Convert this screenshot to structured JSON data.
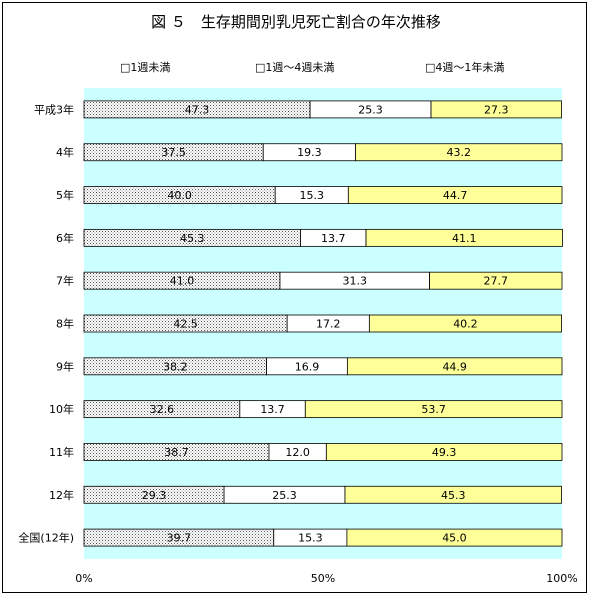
{
  "chart_data": {
    "type": "bar",
    "orientation": "horizontal",
    "stacked": true,
    "percent": true,
    "title": "図 ５　生存期間別乳児死亡割合の年次推移",
    "categories": [
      "平成3年",
      "4年",
      "5年",
      "6年",
      "7年",
      "8年",
      "9年",
      "10年",
      "11年",
      "12年",
      "全国(12年)"
    ],
    "series": [
      {
        "name": "□1週未満",
        "color": "#e0e0e0",
        "pattern": "dots",
        "values": [
          47.3,
          37.5,
          40.0,
          45.3,
          41.0,
          42.5,
          38.2,
          32.6,
          38.7,
          29.3,
          39.7
        ]
      },
      {
        "name": "□1週〜4週未満",
        "color": "#ffffff",
        "pattern": "none",
        "values": [
          25.3,
          19.3,
          15.3,
          13.7,
          31.3,
          17.2,
          16.9,
          13.7,
          12.0,
          25.3,
          15.3
        ]
      },
      {
        "name": "□4週〜1年未満",
        "color": "#ffff99",
        "pattern": "none",
        "values": [
          27.3,
          43.2,
          44.7,
          41.1,
          27.7,
          40.2,
          44.9,
          53.7,
          49.3,
          45.3,
          45.0
        ]
      }
    ],
    "value_labels": [
      [
        "47.3",
        "25.3",
        "27.3"
      ],
      [
        "37.5",
        "19.3",
        "43.2"
      ],
      [
        "40.0",
        "15.3",
        "44.7"
      ],
      [
        "45.3",
        "13.7",
        "41.1"
      ],
      [
        "41.0",
        "31.3",
        "27.7"
      ],
      [
        "42.5",
        "17.2",
        "40.2"
      ],
      [
        "38.2",
        "16.9",
        "44.9"
      ],
      [
        "32.6",
        "13.7",
        "53.7"
      ],
      [
        "38.7",
        "12.0",
        "49.3"
      ],
      [
        "29.3",
        "25.3",
        "45.3"
      ],
      [
        "39.7",
        "15.3",
        "45.0"
      ]
    ],
    "xlim": [
      0,
      100
    ],
    "xticks": [
      0,
      50,
      100
    ],
    "xtick_labels": [
      "0%",
      "50%",
      "100%"
    ],
    "legend_position": "top",
    "plot_background": "#ccffff",
    "grid": false
  }
}
